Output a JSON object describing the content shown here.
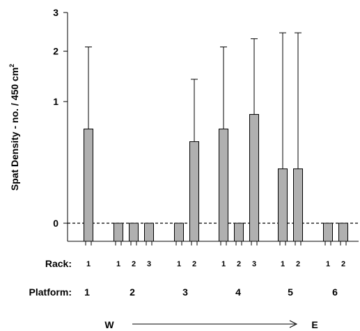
{
  "chart_data": {
    "type": "bar",
    "ylabel": "Spat Density - no. / 450 cm",
    "ylabel_superscript": "2",
    "y_ticks": [
      {
        "value": 0,
        "label": "0"
      },
      {
        "value": 1,
        "label": "1"
      },
      {
        "value": 2,
        "label": "2"
      },
      {
        "value": 3,
        "label": "3"
      }
    ],
    "ylim": [
      -0.3,
      3
    ],
    "y_scale": "square-root",
    "reference_line": {
      "value": 0,
      "style": "dashed"
    },
    "bar_color": "#b0b0b0",
    "rack_axis_label": "Rack:",
    "platform_axis_label": "Platform:",
    "direction_start": "W",
    "direction_end": "E",
    "groups": [
      {
        "platform": "1",
        "bars": [
          {
            "rack": "1",
            "mean": 0.6,
            "error": 2.1
          }
        ]
      },
      {
        "platform": "2",
        "bars": [
          {
            "rack": "1",
            "mean": 0,
            "error": null
          },
          {
            "rack": "2",
            "mean": 0,
            "error": null
          },
          {
            "rack": "3",
            "mean": 0,
            "error": null
          }
        ]
      },
      {
        "platform": "3",
        "bars": [
          {
            "rack": "1",
            "mean": 0,
            "error": null
          },
          {
            "rack": "2",
            "mean": 0.45,
            "error": 1.4
          }
        ]
      },
      {
        "platform": "4",
        "bars": [
          {
            "rack": "1",
            "mean": 0.6,
            "error": 2.1
          },
          {
            "rack": "2",
            "mean": 0,
            "error": null
          },
          {
            "rack": "3",
            "mean": 0.8,
            "error": 2.3
          }
        ]
      },
      {
        "platform": "5",
        "bars": [
          {
            "rack": "1",
            "mean": 0.2,
            "error": 2.45
          },
          {
            "rack": "2",
            "mean": 0.2,
            "error": 2.45
          }
        ]
      },
      {
        "platform": "6",
        "bars": [
          {
            "rack": "1",
            "mean": 0,
            "error": null
          },
          {
            "rack": "2",
            "mean": 0,
            "error": null
          }
        ]
      }
    ]
  }
}
